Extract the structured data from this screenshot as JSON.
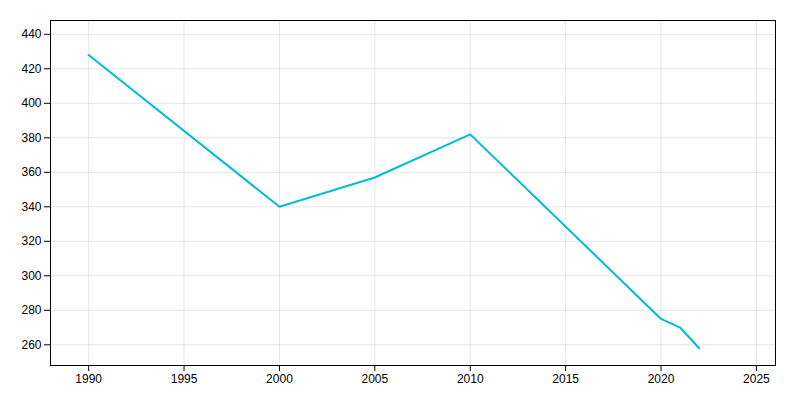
{
  "chart_data": {
    "type": "line",
    "x": [
      1990,
      2000,
      2005,
      2010,
      2020,
      2021,
      2022
    ],
    "values": [
      428,
      340,
      357,
      382,
      275,
      270,
      258
    ],
    "color": "#00BCD4",
    "xlim": [
      1988,
      2026
    ],
    "ylim": [
      248,
      448
    ],
    "xticks": [
      1990,
      1995,
      2000,
      2005,
      2010,
      2015,
      2020,
      2025
    ],
    "yticks": [
      260,
      280,
      300,
      320,
      340,
      360,
      380,
      400,
      420,
      440
    ],
    "grid": true
  }
}
